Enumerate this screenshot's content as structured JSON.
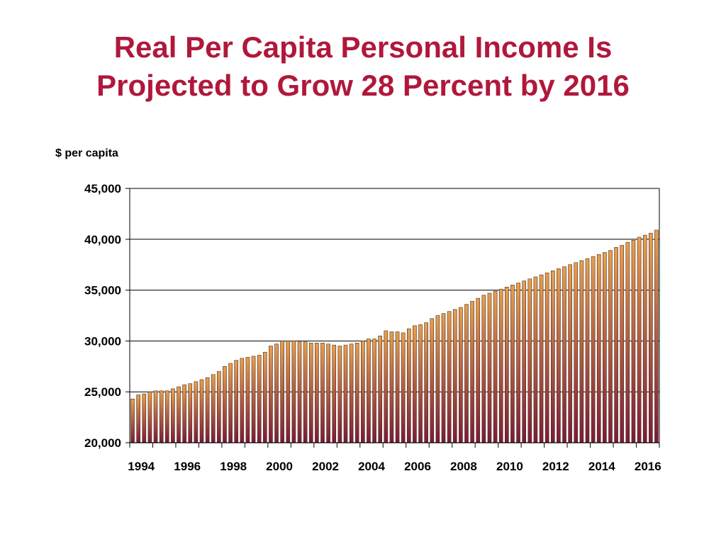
{
  "title": {
    "line1": "Real Per Capita Personal Income Is",
    "line2": "Projected to Grow 28 Percent by 2016"
  },
  "colors": {
    "title": "#b0183b",
    "bar_top": "#e8a050",
    "bar_bottom": "#7a1a3a",
    "bar_edge": "#4a2a10"
  },
  "chart_data": {
    "type": "bar",
    "title": "Real Per Capita Personal Income Is Projected to Grow 28 Percent by 2016",
    "ylabel": "$ per capita",
    "xlabel": "",
    "ylim": [
      20000,
      45000
    ],
    "yticks": [
      "20,000",
      "25,000",
      "30,000",
      "35,000",
      "40,000",
      "45,000"
    ],
    "ytick_values": [
      20000,
      25000,
      30000,
      35000,
      40000,
      45000
    ],
    "xticks": [
      "1994",
      "1996",
      "1998",
      "2000",
      "2002",
      "2004",
      "2006",
      "2008",
      "2010",
      "2012",
      "2014",
      "2016"
    ],
    "grid": true,
    "frequency": "quarterly",
    "start": "1994 Q1",
    "end": "2016 Q4",
    "values": [
      24300,
      24700,
      24800,
      25000,
      25100,
      25100,
      25100,
      25300,
      25500,
      25700,
      25800,
      26000,
      26200,
      26400,
      26700,
      27000,
      27500,
      27800,
      28100,
      28300,
      28400,
      28500,
      28600,
      28900,
      29500,
      29700,
      30000,
      30000,
      30000,
      29900,
      29900,
      29800,
      29800,
      29800,
      29700,
      29600,
      29500,
      29600,
      29700,
      29800,
      30000,
      30200,
      30200,
      30500,
      31000,
      30900,
      30900,
      30800,
      31200,
      31500,
      31600,
      31800,
      32200,
      32500,
      32700,
      32900,
      33100,
      33300,
      33600,
      33900,
      34200,
      34500,
      34700,
      34900,
      35100,
      35300,
      35500,
      35700,
      35900,
      36100,
      36300,
      36500,
      36700,
      36900,
      37100,
      37300,
      37500,
      37700,
      37900,
      38100,
      38300,
      38500,
      38700,
      38900,
      39200,
      39400,
      39700,
      39900,
      40200,
      40400,
      40600,
      40900
    ]
  }
}
